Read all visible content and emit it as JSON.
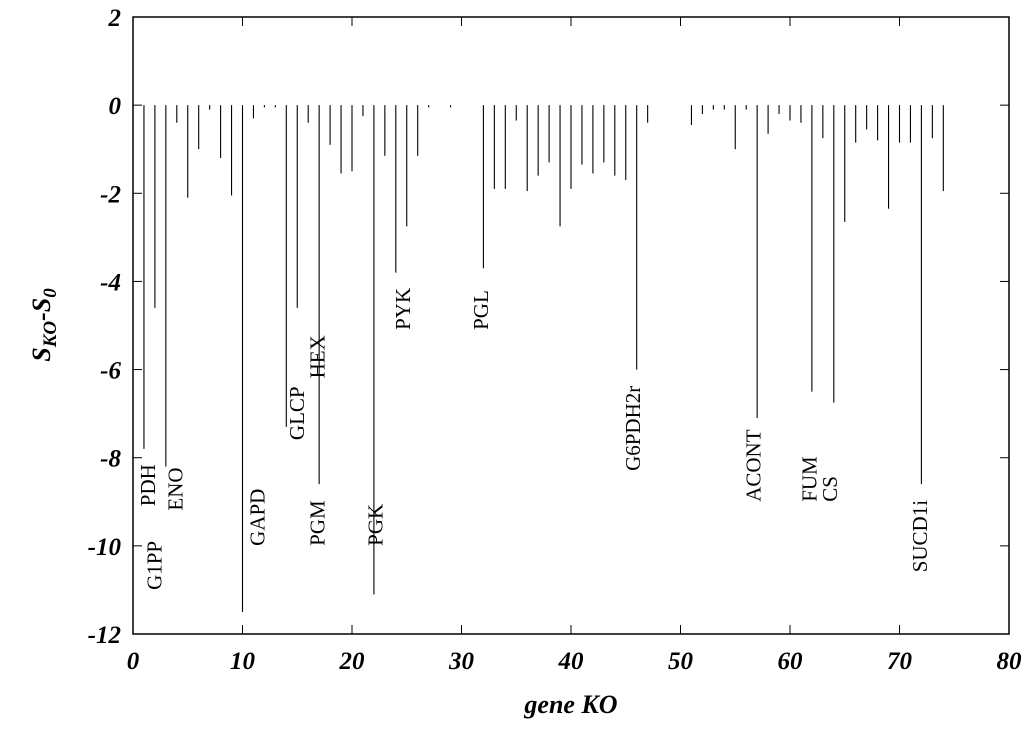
{
  "chart_data": {
    "type": "bar",
    "title": "",
    "xlabel": "gene KO",
    "ylabel": {
      "main": "S",
      "sub1": "KO",
      "mid": "-S",
      "sub2": "0"
    },
    "xlim": [
      0,
      80
    ],
    "ylim": [
      -12,
      2
    ],
    "x_ticks": [
      "0",
      "10",
      "20",
      "30",
      "40",
      "50",
      "60",
      "70",
      "80"
    ],
    "y_ticks": [
      "2",
      "0",
      "-2",
      "-4",
      "-6",
      "-8",
      "-10",
      "-12"
    ],
    "grid": false,
    "x": [
      1,
      2,
      3,
      4,
      5,
      6,
      7,
      8,
      9,
      10,
      11,
      12,
      13,
      14,
      15,
      16,
      17,
      18,
      19,
      20,
      21,
      22,
      23,
      24,
      25,
      26,
      27,
      29,
      32,
      33,
      34,
      35,
      36,
      37,
      38,
      39,
      40,
      41,
      42,
      43,
      44,
      45,
      46,
      47,
      51,
      52,
      53,
      54,
      55,
      56,
      57,
      58,
      59,
      60,
      61,
      62,
      63,
      64,
      65,
      66,
      67,
      68,
      69,
      70,
      71,
      72,
      73,
      74
    ],
    "values": [
      -7.8,
      -4.6,
      -8.2,
      -0.4,
      -2.1,
      -1.0,
      -0.1,
      -1.2,
      -2.05,
      -11.5,
      -0.3,
      -0.05,
      -0.05,
      -7.3,
      -4.6,
      -0.4,
      -8.6,
      -0.9,
      -1.55,
      -1.5,
      -0.25,
      -11.1,
      -1.15,
      -3.8,
      -2.75,
      -1.15,
      -0.05,
      -0.05,
      -3.7,
      -1.9,
      -1.9,
      -0.35,
      -1.95,
      -1.6,
      -1.3,
      -2.75,
      -1.9,
      -1.35,
      -1.55,
      -1.3,
      -1.6,
      -1.7,
      -6.0,
      -0.4,
      -0.45,
      -0.2,
      -0.1,
      -0.1,
      -1.0,
      -0.1,
      -7.1,
      -0.65,
      -0.2,
      -0.35,
      -0.4,
      -6.5,
      -0.75,
      -6.75,
      -2.65,
      -0.85,
      -0.55,
      -0.8,
      -2.35,
      -0.85,
      -0.85,
      -8.6,
      -0.75,
      -1.95
    ],
    "labels": [
      {
        "text": "PDH",
        "x": 2,
        "y": -9.1
      },
      {
        "text": "G1PP",
        "x": 2.6,
        "y": -11.0
      },
      {
        "text": "ENO",
        "x": 4.5,
        "y": -9.2
      },
      {
        "text": "GAPD",
        "x": 12,
        "y": -10.0
      },
      {
        "text": "GLCP",
        "x": 15.6,
        "y": -7.6
      },
      {
        "text": "HEX",
        "x": 17.5,
        "y": -6.2
      },
      {
        "text": "PGM",
        "x": 17.5,
        "y": -10.0
      },
      {
        "text": "PYK",
        "x": 25.3,
        "y": -5.1
      },
      {
        "text": "PGK",
        "x": 22.8,
        "y": -10.0
      },
      {
        "text": "PGL",
        "x": 32.4,
        "y": -5.1
      },
      {
        "text": "G6PDH2r",
        "x": 46.3,
        "y": -8.3
      },
      {
        "text": "ACONT",
        "x": 57.3,
        "y": -9.0
      },
      {
        "text": "FUM",
        "x": 62.4,
        "y": -9.0
      },
      {
        "text": "CS",
        "x": 64.3,
        "y": -9.0
      },
      {
        "text": "SUCD1i",
        "x": 72.5,
        "y": -10.6
      }
    ]
  }
}
